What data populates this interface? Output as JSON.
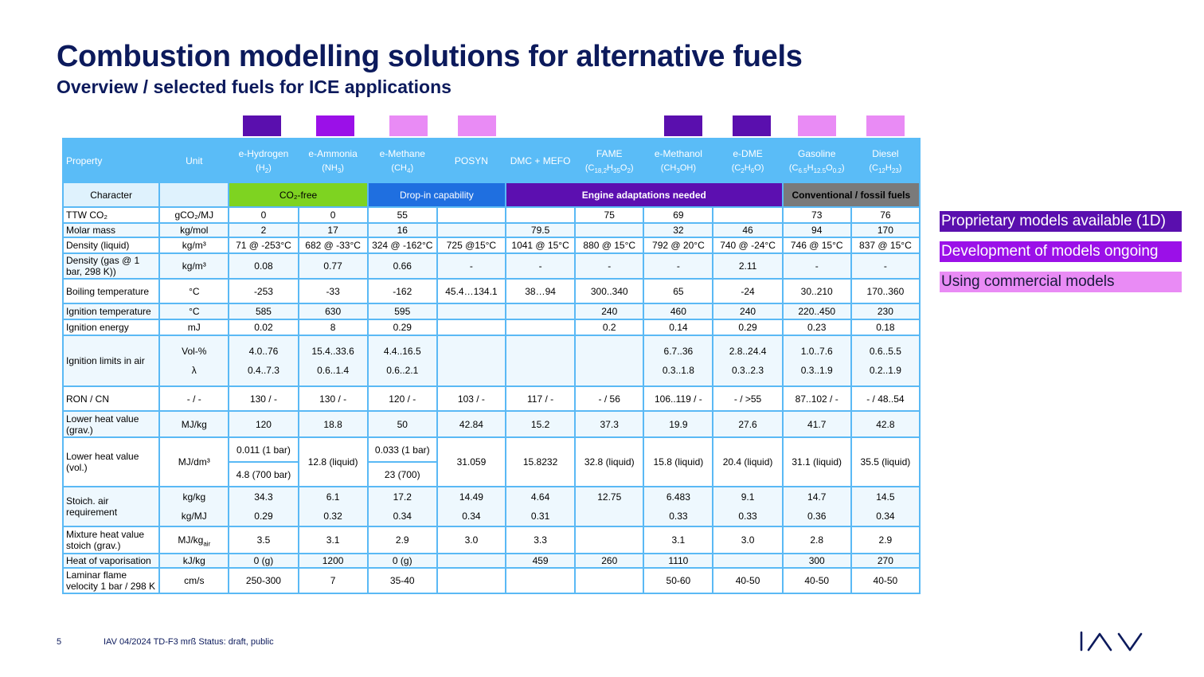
{
  "title": "Combustion modelling solutions for alternative fuels",
  "subtitle": "Overview / selected fuels for ICE applications",
  "colors": {
    "proprietary": "#5a0fae",
    "development": "#9b10e8",
    "commercial": "#e98bf5",
    "header_blue": "#5abcf7"
  },
  "header": {
    "property": "Property",
    "unit": "Unit",
    "fuels": [
      {
        "name": "e-Hydrogen",
        "formula_html": "(H<sub>2</sub>)",
        "swatch": "proprietary"
      },
      {
        "name": "e-Ammonia",
        "formula_html": "(NH<sub>3</sub>)",
        "swatch": "development"
      },
      {
        "name": "e-Methane",
        "formula_html": "(CH<sub>4</sub>)",
        "swatch": "commercial"
      },
      {
        "name": "POSYN",
        "formula_html": "",
        "swatch": "commercial"
      },
      {
        "name": "DMC + MEFO",
        "formula_html": "",
        "swatch": ""
      },
      {
        "name": "FAME",
        "formula_html": "(C<sub>18,2</sub>H<sub>35</sub>O<sub>2</sub>)",
        "swatch": ""
      },
      {
        "name": "e-Methanol",
        "formula_html": "(CH<sub>3</sub>OH)",
        "swatch": "proprietary"
      },
      {
        "name": "e-DME",
        "formula_html": "(C<sub>2</sub>H<sub>6</sub>O)",
        "swatch": "proprietary"
      },
      {
        "name": "Gasoline",
        "formula_html": "(C<sub>6.5</sub>H<sub>12.5</sub>O<sub>0.2</sub>)",
        "swatch": "commercial"
      },
      {
        "name": "Diesel",
        "formula_html": "(C<sub>12</sub>H<sub>23</sub>)",
        "swatch": "commercial"
      }
    ]
  },
  "character": {
    "label": "Character",
    "co2_free": "CO₂-free",
    "drop_in": "Drop-in capability",
    "engine_adapt": "Engine adaptations needed",
    "conventional": "Conventional / fossil fuels"
  },
  "rows": {
    "ttw": {
      "prop": "TTW CO₂",
      "unit": "gCO₂/MJ",
      "vals": [
        "0",
        "0",
        "55",
        "",
        "",
        "75",
        "69",
        "",
        "73",
        "76"
      ]
    },
    "molar": {
      "prop": "Molar mass",
      "unit": "kg/mol",
      "vals": [
        "2",
        "17",
        "16",
        "",
        "79.5",
        "",
        "32",
        "46",
        "94",
        "170"
      ]
    },
    "density_liquid": {
      "prop": "Density (liquid)",
      "unit": "kg/m³",
      "vals": [
        "71 @ -253°C",
        "682 @ -33°C",
        "324 @ -162°C",
        "725 @15°C",
        "1041 @ 15°C",
        "880 @ 15°C",
        "792 @ 20°C",
        "740 @ -24°C",
        "746 @ 15°C",
        "837 @ 15°C"
      ]
    },
    "density_gas": {
      "prop": "Density (gas @ 1 bar, 298 K))",
      "unit": "kg/m³",
      "vals": [
        "0.08",
        "0.77",
        "0.66",
        "-",
        "-",
        "-",
        "-",
        "2.11",
        "-",
        "-"
      ]
    },
    "boiling": {
      "prop": "Boiling temperature",
      "unit": "°C",
      "vals": [
        "-253",
        "-33",
        "-162",
        "45.4…134.1",
        "38…94",
        "300..340",
        "65",
        "-24",
        "30..210",
        "170..360"
      ]
    },
    "ign_temp": {
      "prop": "Ignition temperature",
      "unit": "°C",
      "vals": [
        "585",
        "630",
        "595",
        "",
        "",
        "240",
        "460",
        "240",
        "220..450",
        "230"
      ]
    },
    "ign_energy": {
      "prop": "Ignition energy",
      "unit": "mJ",
      "vals": [
        "0.02",
        "8",
        "0.29",
        "",
        "",
        "0.2",
        "0.14",
        "0.29",
        "0.23",
        "0.18"
      ]
    },
    "ign_limits": {
      "prop": "Ignition limits in air",
      "unit_a": "Vol-%",
      "unit_b": "λ",
      "vals_a": [
        "4.0..76",
        "15.4..33.6",
        "4.4..16.5",
        "",
        "",
        "",
        "6.7..36",
        "2.8..24.4",
        "1.0..7.6",
        "0.6..5.5"
      ],
      "vals_b": [
        "0.4..7.3",
        "0.6..1.4",
        "0.6..2.1",
        "",
        "",
        "",
        "0.3..1.8",
        "0.3..2.3",
        "0.3..1.9",
        "0.2..1.9"
      ]
    },
    "ron": {
      "prop": "RON / CN",
      "unit": "- / -",
      "vals": [
        "130 / -",
        "130 / -",
        "120 / -",
        "103 / -",
        "117 / -",
        "- / 56",
        "106..119 / -",
        "- / >55",
        "87..102 / -",
        "- / 48..54"
      ]
    },
    "lhv_grav": {
      "prop": "Lower heat value (grav.)",
      "unit": "MJ/kg",
      "vals": [
        "120",
        "18.8",
        "50",
        "42.84",
        "15.2",
        "37.3",
        "19.9",
        "27.6",
        "41.7",
        "42.8"
      ]
    },
    "lhv_vol": {
      "prop": "Lower heat value (vol.)",
      "unit": "MJ/dm³",
      "h2_a": "0.011 (1 bar)",
      "h2_b": "4.8 (700 bar)",
      "nh3": "12.8 (liquid)",
      "ch4_a": "0.033 (1 bar)",
      "ch4_b": "23 (700)",
      "rest": [
        "31.059",
        "15.8232",
        "32.8 (liquid)",
        "15.8 (liquid)",
        "20.4 (liquid)",
        "31.1 (liquid)",
        "35.5 (liquid)"
      ]
    },
    "stoich": {
      "prop": "Stoich. air requirement",
      "unit_a": "kg/kg",
      "unit_b": "kg/MJ",
      "vals_a": [
        "34.3",
        "6.1",
        "17.2",
        "14.49",
        "4.64",
        "12.75",
        "6.483",
        "9.1",
        "14.7",
        "14.5"
      ],
      "vals_b": [
        "0.29",
        "0.32",
        "0.34",
        "0.34",
        "0.31",
        "",
        "0.33",
        "0.33",
        "0.36",
        "0.34"
      ]
    },
    "mix_heat": {
      "prop": "Mixture heat value stoich (grav.)",
      "unit_html": "MJ/kg<sub>air</sub>",
      "vals": [
        "3.5",
        "3.1",
        "2.9",
        "3.0",
        "3.3",
        "",
        "3.1",
        "3.0",
        "2.8",
        "2.9"
      ]
    },
    "vaporisation": {
      "prop": "Heat of vaporisation",
      "unit": "kJ/kg",
      "vals": [
        "0 (g)",
        "1200",
        "0 (g)",
        "",
        "459",
        "260",
        "1110",
        "",
        "300",
        "270"
      ]
    },
    "flame": {
      "prop": "Laminar flame velocity 1 bar / 298 K",
      "unit": "cm/s",
      "vals": [
        "250-300",
        "7",
        "35-40",
        "",
        "",
        "",
        "50-60",
        "40-50",
        "40-50",
        "40-50"
      ]
    }
  },
  "legend": {
    "proprietary": "Proprietary models available (1D)",
    "development": "Development of models ongoing",
    "commercial": "Using commercial models"
  },
  "footer": {
    "page": "5",
    "text": "IAV  04/2024  TD-F3 mrß Status: draft, public"
  },
  "logo": {
    "text": "IAV"
  }
}
